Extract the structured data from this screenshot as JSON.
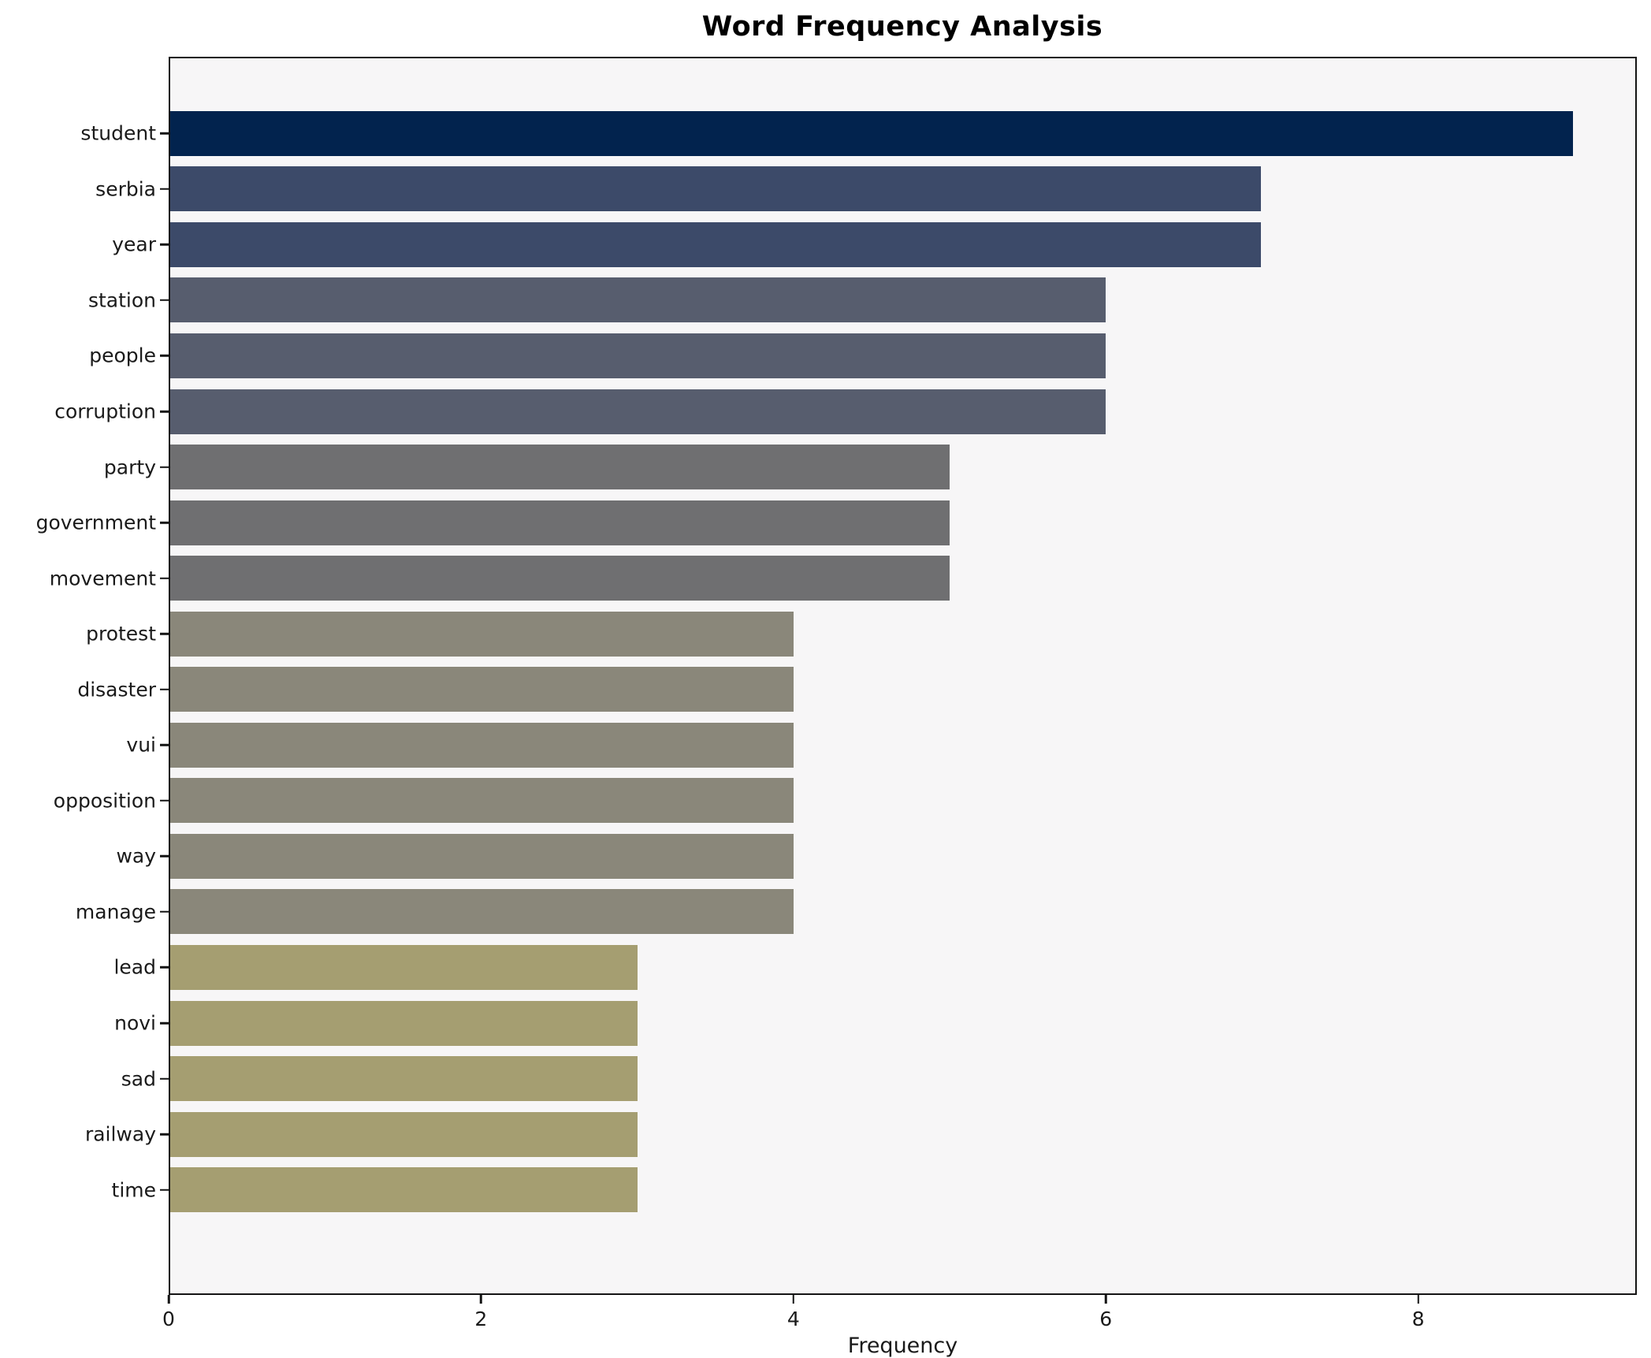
{
  "title": "Word Frequency Analysis",
  "chart_data": {
    "type": "bar",
    "orientation": "horizontal",
    "title": "Word Frequency Analysis",
    "xlabel": "Frequency",
    "ylabel": "",
    "categories": [
      "student",
      "serbia",
      "year",
      "station",
      "people",
      "corruption",
      "party",
      "government",
      "movement",
      "protest",
      "disaster",
      "vui",
      "opposition",
      "way",
      "manage",
      "lead",
      "novi",
      "sad",
      "railway",
      "time"
    ],
    "values": [
      9,
      7,
      7,
      6,
      6,
      6,
      5,
      5,
      5,
      4,
      4,
      4,
      4,
      4,
      4,
      3,
      3,
      3,
      3,
      3
    ],
    "bar_colors": [
      "#02234e",
      "#3c4a69",
      "#3c4a69",
      "#575d6e",
      "#575d6e",
      "#575d6e",
      "#6f6f71",
      "#6f6f71",
      "#6f6f71",
      "#8a877a",
      "#8a877a",
      "#8a877a",
      "#8a877a",
      "#8a877a",
      "#8a877a",
      "#a59e71",
      "#a59e71",
      "#a59e71",
      "#a59e71",
      "#a59e71"
    ],
    "xlim": [
      0,
      9.4
    ],
    "xticks": [
      0,
      2,
      4,
      6,
      8
    ],
    "grid": false,
    "legend": null,
    "plot_background": "#f7f6f7",
    "spine_color": "#141414",
    "colormap": "cividis"
  }
}
